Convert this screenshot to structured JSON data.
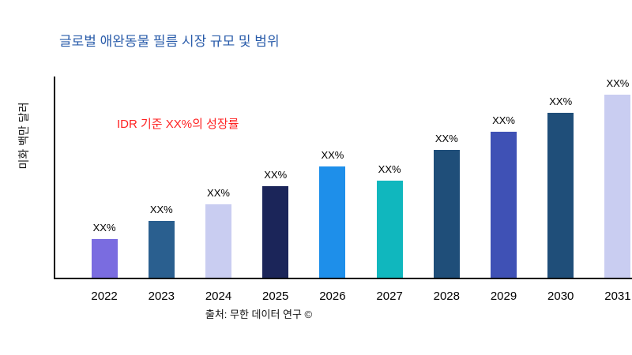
{
  "title": "글로벌 애완동물 필름 시장 규모 및 범위",
  "annotation": "IDR 기준 XX%의 성장률",
  "source": "출처: 무한 데이터 연구 ©",
  "colors": {
    "title": "#2a5caa",
    "annotation": "#ff2121",
    "axis": "#0a0a0a"
  },
  "chart_data": {
    "type": "bar",
    "title": "글로벌 애완동물 필름 시장 규모 및 범위",
    "xlabel": "",
    "ylabel": "미화 백만 달러",
    "categories": [
      "2022",
      "2023",
      "2024",
      "2025",
      "2026",
      "2027",
      "2028",
      "2029",
      "2030",
      "2031"
    ],
    "values": [
      21,
      31,
      40,
      50,
      61,
      53,
      70,
      80,
      90,
      100
    ],
    "bar_labels": [
      "XX%",
      "XX%",
      "XX%",
      "XX%",
      "XX%",
      "XX%",
      "XX%",
      "XX%",
      "XX%",
      "XX%"
    ],
    "bar_colors": [
      "#7a6ce0",
      "#2a5f8f",
      "#c9cdf1",
      "#1b2559",
      "#1e8fea",
      "#10b7be",
      "#1f4e79",
      "#3f51b5",
      "#1f4e79",
      "#c9cdf1"
    ],
    "ylim": [
      0,
      110
    ],
    "grid": false,
    "legend": "none",
    "annotation": "IDR 기준 XX%의 성장률"
  }
}
